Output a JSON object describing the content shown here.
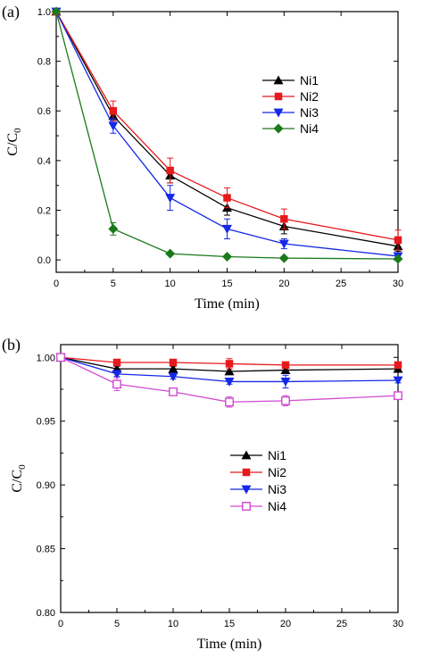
{
  "chart_data": [
    {
      "type": "line",
      "panel_label": "(a)",
      "xlabel": "Time (min)",
      "ylabel": "C/C",
      "ylabel_sub": "0",
      "xlim": [
        0,
        30
      ],
      "ylim": [
        -0.05,
        1.0
      ],
      "xticks": [
        0,
        5,
        10,
        15,
        20,
        25,
        30
      ],
      "yticks": [
        0.0,
        0.2,
        0.4,
        0.6,
        0.8,
        1.0
      ],
      "ytick_labels": [
        "0.0",
        "0.2",
        "0.4",
        "0.6",
        "0.8",
        "1.0"
      ],
      "legend_position": "right",
      "series": [
        {
          "name": "Ni1",
          "color": "#000000",
          "marker": "triangle-up",
          "x": [
            0,
            5,
            10,
            15,
            20,
            30
          ],
          "y": [
            1.0,
            0.58,
            0.34,
            0.21,
            0.135,
            0.055
          ],
          "err": [
            0,
            0.02,
            0.03,
            0.03,
            0.03,
            0.02
          ]
        },
        {
          "name": "Ni2",
          "color": "#e8191b",
          "marker": "square",
          "x": [
            0,
            5,
            10,
            15,
            20,
            30
          ],
          "y": [
            1.0,
            0.6,
            0.36,
            0.25,
            0.165,
            0.08
          ],
          "err": [
            0,
            0.04,
            0.05,
            0.04,
            0.04,
            0.04
          ]
        },
        {
          "name": "Ni3",
          "color": "#1428e6",
          "marker": "triangle-down",
          "x": [
            0,
            5,
            10,
            15,
            20,
            30
          ],
          "y": [
            1.0,
            0.54,
            0.25,
            0.125,
            0.065,
            0.015
          ],
          "err": [
            0,
            0.03,
            0.05,
            0.04,
            0.02,
            0.01
          ]
        },
        {
          "name": "Ni4",
          "color": "#1a7a1a",
          "marker": "diamond",
          "x": [
            0,
            5,
            10,
            15,
            20,
            30
          ],
          "y": [
            1.0,
            0.125,
            0.025,
            0.013,
            0.007,
            0.004
          ],
          "err": [
            0,
            0.025,
            0.005,
            0.003,
            0.002,
            0.002
          ]
        }
      ]
    },
    {
      "type": "line",
      "panel_label": "(b)",
      "xlabel": "Time (min)",
      "ylabel": "C/C",
      "ylabel_sub": "0",
      "xlim": [
        0,
        30
      ],
      "ylim": [
        0.8,
        1.01
      ],
      "xticks": [
        0,
        5,
        10,
        15,
        20,
        25,
        30
      ],
      "yticks": [
        0.8,
        0.85,
        0.9,
        0.95,
        1.0
      ],
      "ytick_labels": [
        "0.80",
        "0.85",
        "0.90",
        "0.95",
        "1.00"
      ],
      "legend_position": "center",
      "series": [
        {
          "name": "Ni1",
          "color": "#000000",
          "marker": "triangle-up",
          "x": [
            0,
            5,
            10,
            15,
            20,
            30
          ],
          "y": [
            1.0,
            0.991,
            0.991,
            0.989,
            0.99,
            0.991
          ],
          "err": [
            0,
            0.002,
            0.002,
            0.002,
            0.002,
            0.002
          ]
        },
        {
          "name": "Ni2",
          "color": "#e8191b",
          "marker": "square",
          "x": [
            0,
            5,
            10,
            15,
            20,
            30
          ],
          "y": [
            1.0,
            0.996,
            0.996,
            0.995,
            0.994,
            0.994
          ],
          "err": [
            0,
            0.001,
            0.002,
            0.004,
            0.002,
            0.002
          ]
        },
        {
          "name": "Ni3",
          "color": "#1428e6",
          "marker": "triangle-down",
          "x": [
            0,
            5,
            10,
            15,
            20,
            30
          ],
          "y": [
            1.0,
            0.987,
            0.985,
            0.981,
            0.981,
            0.982
          ],
          "err": [
            0,
            0.002,
            0.002,
            0.002,
            0.005,
            0.002
          ]
        },
        {
          "name": "Ni4",
          "color": "#d24ad2",
          "marker": "square-open",
          "x": [
            0,
            5,
            10,
            15,
            20,
            30
          ],
          "y": [
            1.0,
            0.979,
            0.973,
            0.965,
            0.966,
            0.97
          ],
          "err": [
            0,
            0.005,
            0.002,
            0.004,
            0.004,
            0.002
          ]
        }
      ]
    }
  ]
}
